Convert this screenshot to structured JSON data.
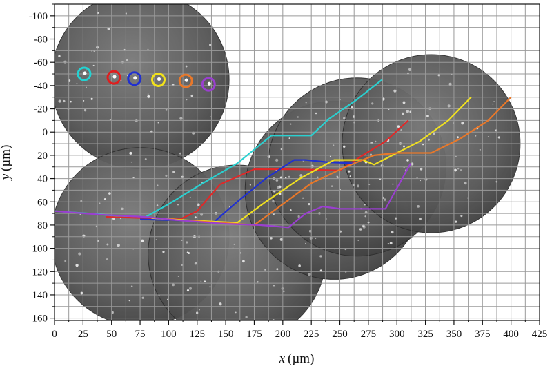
{
  "chart_data": {
    "type": "scatter",
    "title": "",
    "xlabel": {
      "symbol": "x",
      "unit": "(µm)"
    },
    "ylabel": {
      "symbol": "y",
      "unit": "(µm)"
    },
    "xlim": [
      0,
      425
    ],
    "ylim": [
      -110,
      162
    ],
    "y_inverted": true,
    "x_ticks": [
      0,
      25,
      50,
      75,
      100,
      125,
      150,
      175,
      200,
      225,
      250,
      275,
      300,
      325,
      350,
      375,
      400,
      425
    ],
    "y_ticks": [
      -100,
      -80,
      -60,
      -40,
      -20,
      0,
      20,
      40,
      60,
      80,
      100,
      120,
      140,
      160
    ],
    "grid": true,
    "grid_step": {
      "x": 12.5,
      "y": 10
    },
    "background": "stitched grayscale microscopy images (circular fields of view)",
    "fields_of_view": [
      {
        "cx": 75,
        "cy": -45,
        "r": 78
      },
      {
        "cx": 75,
        "cy": 90,
        "r": 78
      },
      {
        "cx": 160,
        "cy": 105,
        "r": 78
      },
      {
        "cx": 245,
        "cy": 50,
        "r": 78
      },
      {
        "cx": 265,
        "cy": 30,
        "r": 78
      },
      {
        "cx": 330,
        "cy": 10,
        "r": 78
      }
    ],
    "markers": [
      {
        "x": 26,
        "y": -50,
        "color": "#22d3d3"
      },
      {
        "x": 52,
        "y": -47,
        "color": "#e01e1e"
      },
      {
        "x": 70,
        "y": -46,
        "color": "#2030d0"
      },
      {
        "x": 91,
        "y": -45,
        "color": "#f2e21a"
      },
      {
        "x": 115,
        "y": -44,
        "color": "#e8782a"
      },
      {
        "x": 135,
        "y": -41,
        "color": "#9a3fd0"
      }
    ],
    "series": [
      {
        "color": "#2ad0d0",
        "x": [
          0,
          30,
          55,
          80,
          100,
          130,
          160,
          190,
          225,
          240,
          265,
          287
        ],
        "y": [
          68,
          70,
          72,
          73,
          62,
          44,
          27,
          3,
          3,
          -11,
          -28,
          -45
        ]
      },
      {
        "color": "#e02828",
        "x": [
          45,
          80,
          110,
          125,
          145,
          175,
          190,
          210,
          250,
          270,
          290,
          310
        ],
        "y": [
          73,
          74,
          75,
          68,
          45,
          32,
          32,
          32,
          33,
          20,
          8,
          -10
        ]
      },
      {
        "color": "#2030d0",
        "x": [
          75,
          110,
          140,
          160,
          185,
          210,
          220,
          240,
          265
        ],
        "y": [
          75,
          76,
          77,
          60,
          40,
          24,
          24,
          26,
          27
        ]
      },
      {
        "color": "#f0e020",
        "x": [
          85,
          120,
          160,
          185,
          215,
          245,
          270,
          280,
          300,
          320,
          345,
          365
        ],
        "y": [
          74,
          76,
          78,
          60,
          40,
          24,
          24,
          28,
          18,
          8,
          -10,
          -30
        ]
      },
      {
        "color": "#e8782a",
        "x": [
          95,
          130,
          175,
          200,
          225,
          255,
          280,
          300,
          330,
          355,
          380,
          400
        ],
        "y": [
          75,
          77,
          80,
          62,
          44,
          30,
          20,
          18,
          18,
          6,
          -10,
          -30
        ]
      },
      {
        "color": "#9a3fd0",
        "x": [
          0,
          40,
          80,
          110,
          150,
          180,
          205,
          220,
          235,
          250,
          290,
          312
        ],
        "y": [
          68,
          71,
          73,
          76,
          79,
          80,
          82,
          70,
          64,
          66,
          66,
          27
        ]
      }
    ]
  }
}
